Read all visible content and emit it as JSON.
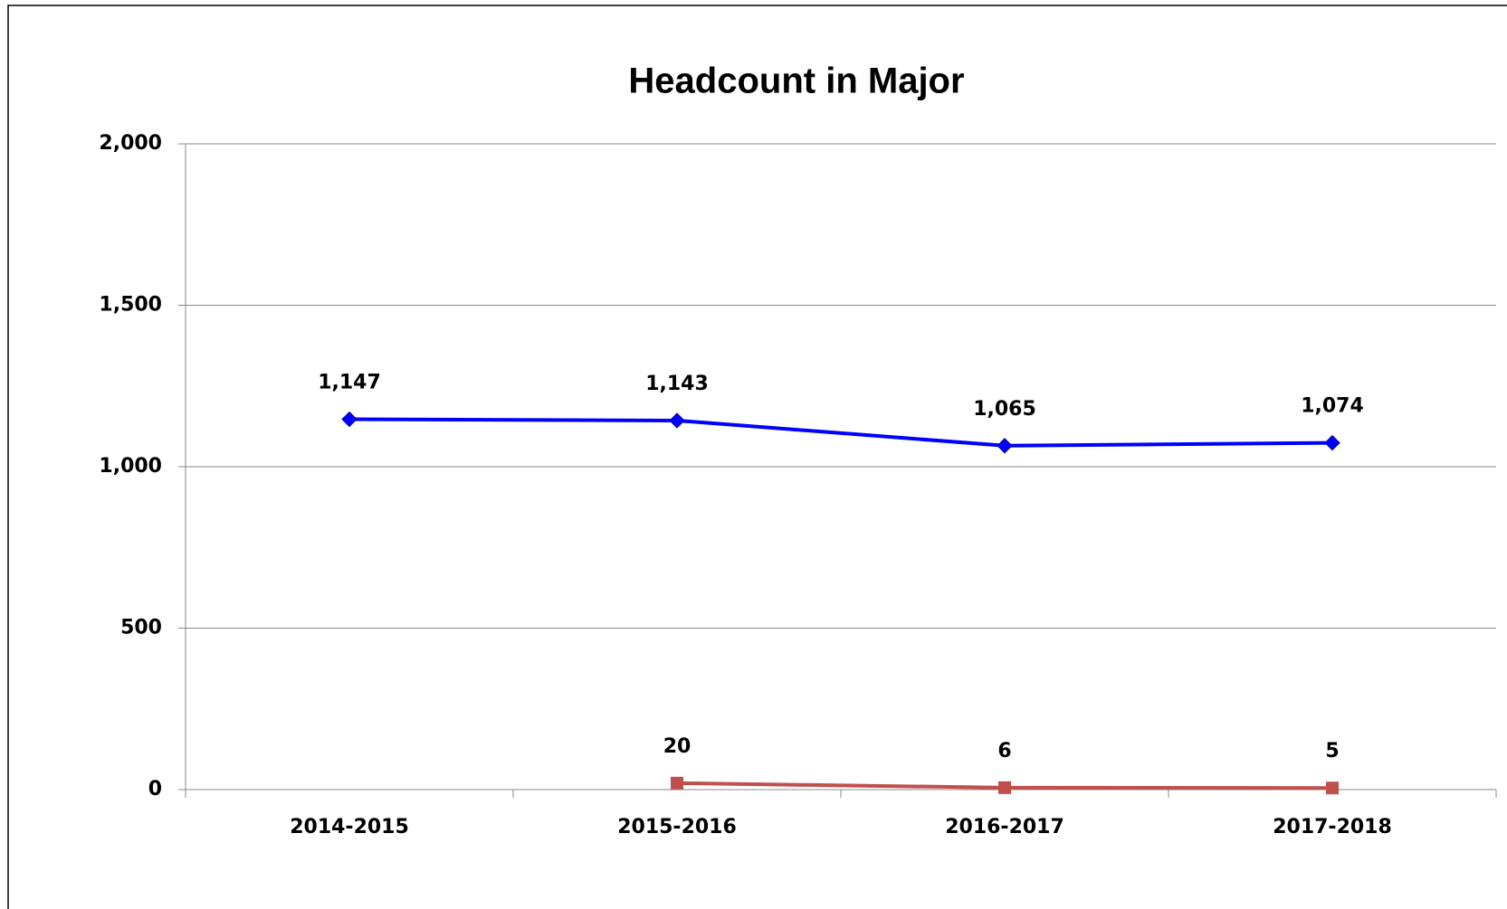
{
  "chart_data": {
    "type": "line",
    "title": "Headcount in Major",
    "categories": [
      "2014-2015",
      "2015-2016",
      "2016-2017",
      "2017-2018"
    ],
    "series": [
      {
        "color": "#0000ff",
        "marker": "diamond",
        "values": [
          1147,
          1143,
          1065,
          1074
        ],
        "value_labels": [
          "1,147",
          "1,143",
          "1,065",
          "1,074"
        ]
      },
      {
        "color": "#c0504d",
        "marker": "square",
        "values": [
          null,
          20,
          6,
          5
        ],
        "value_labels": [
          null,
          "20",
          "6",
          "5"
        ]
      }
    ],
    "ylim": [
      0,
      2000
    ],
    "yticks": [
      0,
      500,
      {
        "value": 1000,
        "label": "1,000"
      },
      {
        "value": 1500,
        "label": "1,500"
      },
      {
        "value": 2000,
        "label": "2,000"
      }
    ],
    "grid": true
  }
}
